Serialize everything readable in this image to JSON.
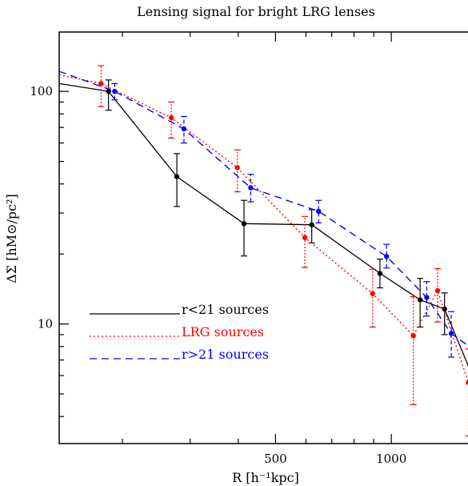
{
  "chart_data": {
    "type": "line",
    "title": "Lensing signal for bright LRG lenses",
    "xlabel": "R [h⁻¹kpc]",
    "ylabel": "ΔΣ [hM⊙/pc²]",
    "xscale": "log",
    "yscale": "log",
    "xlim": [
      137,
      1700
    ],
    "ylim": [
      3.06,
      180
    ],
    "x_ticks": [
      {
        "value": 500,
        "label": "500"
      },
      {
        "value": 1000,
        "label": "1000"
      }
    ],
    "y_ticks": [
      {
        "value": 10,
        "label": "10"
      },
      {
        "value": 100,
        "label": "100"
      }
    ],
    "legend_position": "bottom-left",
    "series": [
      {
        "name": "r<21 sources",
        "color": "#000000",
        "dash": "solid",
        "marker_color": "#000000",
        "x": [
          184,
          277,
          414,
          621,
          934,
          1188,
          1375,
          1653
        ],
        "y": [
          100,
          43,
          27,
          26.7,
          16.5,
          12.7,
          11.6,
          5.6
        ],
        "err_lo": [
          17,
          11,
          7.4,
          4.4,
          2.2,
          3.0,
          2.6,
          1.5
        ],
        "err_hi": [
          12,
          11,
          7.0,
          4.3,
          2.5,
          3.0,
          2.0,
          1.8
        ]
      },
      {
        "name": "LRG sources",
        "color": "#ff0000",
        "dash": "dotted",
        "marker_color": "#ff0000",
        "x": [
          176,
          268,
          398,
          596,
          894,
          1141,
          1319,
          1586
        ],
        "y": [
          108,
          77,
          47,
          23.5,
          13.5,
          8.9,
          13.9,
          5.6
        ],
        "err_lo": [
          22,
          14,
          10,
          6.0,
          3.8,
          4.4,
          3.7,
          2.3
        ],
        "err_hi": [
          21,
          13,
          9.0,
          5.5,
          3.7,
          4.2,
          3.4,
          2.2
        ]
      },
      {
        "name": "r>21 sources",
        "color": "#0000ff",
        "dash": "dashed",
        "marker_color": "#0000ff",
        "x": [
          191,
          289,
          431,
          647,
          972,
          1236,
          1431,
          1721
        ],
        "y": [
          100,
          69,
          38.5,
          30.5,
          19.5,
          13,
          9.1,
          7.3
        ],
        "err_lo": [
          8,
          9,
          5.0,
          3.3,
          2.1,
          2.2,
          1.9,
          3.0
        ],
        "err_hi": [
          8,
          9,
          5.5,
          3.5,
          2.5,
          2.2,
          2.2,
          3.0
        ]
      }
    ]
  }
}
